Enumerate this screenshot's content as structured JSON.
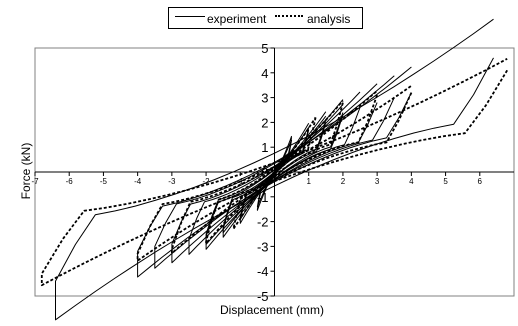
{
  "chart_data": {
    "type": "line",
    "title": "",
    "xlabel": "Displacement (mm)",
    "ylabel": "Force (kN)",
    "xlim": [
      -7,
      7
    ],
    "ylim": [
      -5,
      5
    ],
    "x_ticks": [
      "-7",
      "-6",
      "-5",
      "-4",
      "-3",
      "-2",
      "-1",
      "0",
      "1",
      "2",
      "3",
      "4",
      "5",
      "6"
    ],
    "y_ticks": [
      "5",
      "4",
      "3",
      "2",
      "1",
      "0",
      "-1",
      "-2",
      "-3",
      "-4",
      "-5"
    ],
    "legend_position": "top-center",
    "grid": false,
    "series": [
      {
        "name": "experiment",
        "style": "solid",
        "description": "hysteresis loops (force-displacement)",
        "loops": [
          {
            "amp": 0.5,
            "fpos": 1.3,
            "fneg": -1.4,
            "drop": 0.6
          },
          {
            "amp": 0.5,
            "fpos": 1.4,
            "fneg": -1.5,
            "drop": 0.6
          },
          {
            "amp": 1.0,
            "fpos": 1.7,
            "fneg": -1.8,
            "drop": 0.9
          },
          {
            "amp": 1.0,
            "fpos": 1.8,
            "fneg": -1.9,
            "drop": 0.9
          },
          {
            "amp": 1.5,
            "fpos": 2.0,
            "fneg": -2.2,
            "drop": 1.1
          },
          {
            "amp": 1.5,
            "fpos": 2.1,
            "fneg": -2.3,
            "drop": 1.1
          },
          {
            "amp": 2.0,
            "fpos": 2.3,
            "fneg": -2.5,
            "drop": 1.3
          },
          {
            "amp": 2.0,
            "fpos": 2.4,
            "fneg": -2.6,
            "drop": 1.3
          },
          {
            "amp": 2.5,
            "fpos": 2.6,
            "fneg": -2.7,
            "drop": 1.4
          },
          {
            "amp": 3.0,
            "fpos": 2.8,
            "fneg": -2.9,
            "drop": 1.5
          },
          {
            "amp": 3.5,
            "fpos": 3.0,
            "fneg": -3.0,
            "drop": 1.6
          },
          {
            "amp": 4.0,
            "fpos": 3.2,
            "fneg": -3.2,
            "drop": 1.7
          },
          {
            "amp": 6.4,
            "fpos": 4.6,
            "fneg": -4.4,
            "drop": 2.5
          }
        ]
      },
      {
        "name": "analysis",
        "style": "dashed",
        "description": "hysteresis loops (force-displacement)",
        "loops": [
          {
            "amp": 1.2,
            "fpos": 2.2,
            "fneg": -2.3,
            "drop": 1.2
          },
          {
            "amp": 2.0,
            "fpos": 2.8,
            "fneg": -2.8,
            "drop": 1.6
          },
          {
            "amp": 3.0,
            "fpos": 3.1,
            "fneg": -3.1,
            "drop": 1.8
          },
          {
            "amp": 4.0,
            "fpos": 3.2,
            "fneg": -3.3,
            "drop": 1.9
          },
          {
            "amp": 6.8,
            "fpos": 4.1,
            "fneg": -4.1,
            "drop": 2.4
          }
        ]
      }
    ]
  }
}
